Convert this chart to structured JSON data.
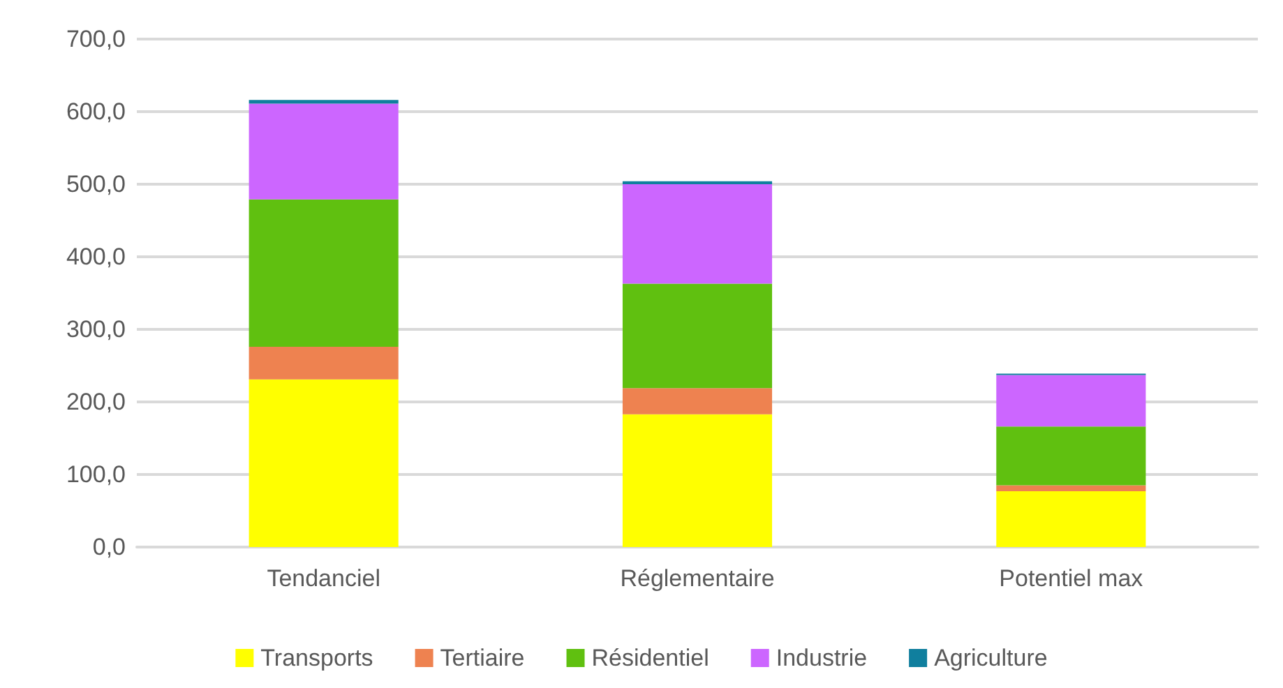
{
  "chart_data": {
    "type": "bar",
    "stacked": true,
    "categories": [
      "Tendanciel",
      "Réglementaire",
      "Potentiel max"
    ],
    "series": [
      {
        "name": "Transports",
        "color": "#ffff00",
        "values": [
          231,
          183,
          77
        ]
      },
      {
        "name": "Tertiaire",
        "color": "#ee8250",
        "values": [
          45,
          36,
          8
        ]
      },
      {
        "name": "Résidentiel",
        "color": "#60c010",
        "values": [
          203,
          144,
          81
        ]
      },
      {
        "name": "Industrie",
        "color": "#cc66ff",
        "values": [
          132,
          137,
          71
        ]
      },
      {
        "name": "Agriculture",
        "color": "#107f9e",
        "values": [
          5,
          4,
          2
        ]
      }
    ],
    "ylim": [
      0,
      700
    ],
    "yticks": [
      {
        "value": 0,
        "label": "0,0"
      },
      {
        "value": 100,
        "label": "100,0"
      },
      {
        "value": 200,
        "label": "200,0"
      },
      {
        "value": 300,
        "label": "300,0"
      },
      {
        "value": 400,
        "label": "400,0"
      },
      {
        "value": 500,
        "label": "500,0"
      },
      {
        "value": 600,
        "label": "600,0"
      },
      {
        "value": 700,
        "label": "700,0"
      }
    ],
    "grid": true,
    "legend": "bottom"
  }
}
